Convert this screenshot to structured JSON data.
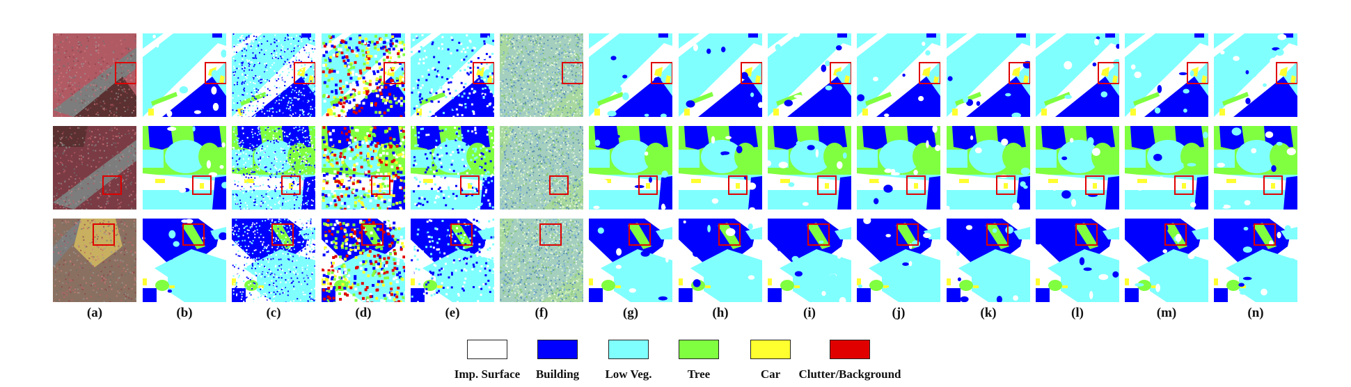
{
  "columns": [
    "(a)",
    "(b)",
    "(c)",
    "(d)",
    "(e)",
    "(f)",
    "(g)",
    "(h)",
    "(i)",
    "(j)",
    "(k)",
    "(l)",
    "(m)",
    "(n)"
  ],
  "rows": 3,
  "panel_kinds": {
    "(a)": "image",
    "(c)": "noisy",
    "(d)": "chaotic",
    "(e)": "blurry",
    "(f)": "noise"
  },
  "colors": {
    "imp_surface": "#ffffff",
    "building": "#0000ff",
    "low_veg": "#80ffff",
    "tree": "#80ff40",
    "car": "#ffff30",
    "clutter": "#e00000",
    "highlight_box": "#e00000"
  },
  "legend": [
    {
      "label": "Imp. Surface",
      "color": "#ffffff"
    },
    {
      "label": "Building",
      "color": "#0000ff"
    },
    {
      "label": "Low Veg.",
      "color": "#80ffff"
    },
    {
      "label": "Tree",
      "color": "#80ff40"
    },
    {
      "label": "Car",
      "color": "#ffff30"
    },
    {
      "label": "Clutter/Background",
      "color": "#e00000"
    }
  ]
}
